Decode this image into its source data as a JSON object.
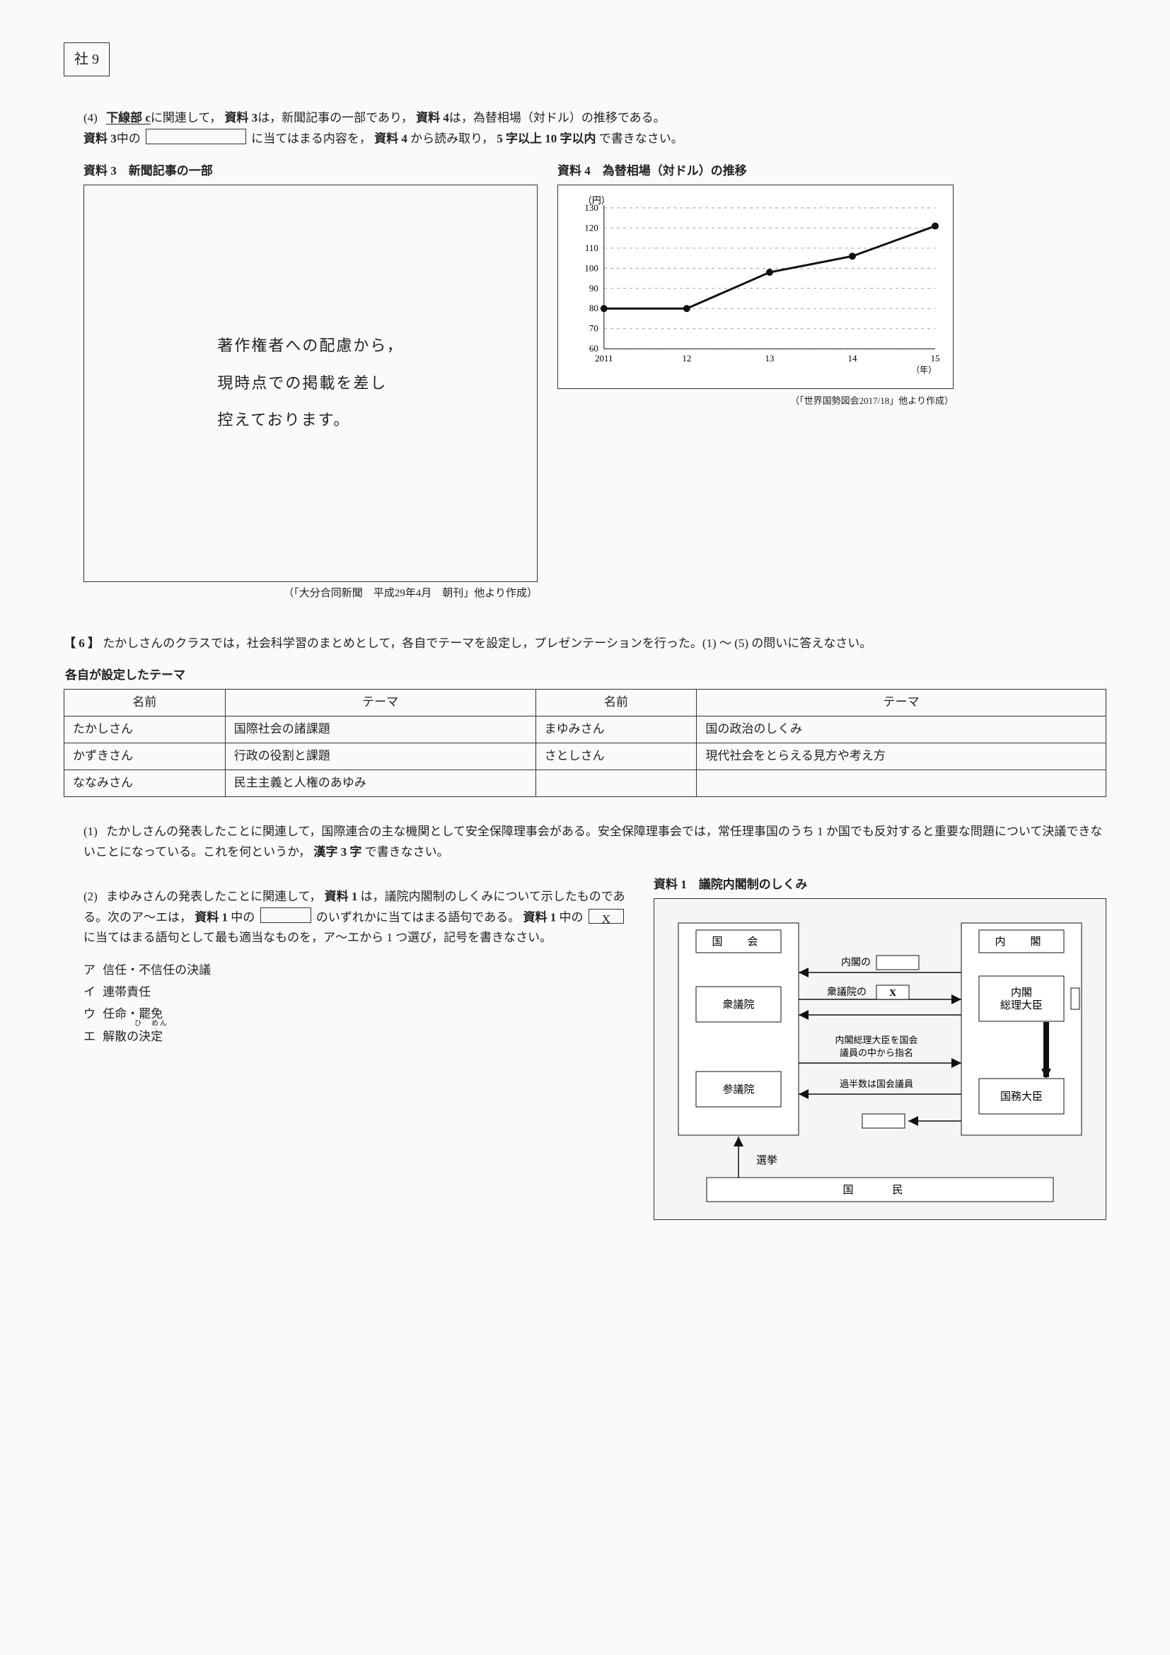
{
  "page_label": "社 9",
  "q4": {
    "num": "(4)",
    "line1_a": "下線部 c",
    "line1_b": "に関連して，",
    "line1_c": "資料 3",
    "line1_d": "は，新聞記事の一部であり，",
    "line1_e": "資料 4",
    "line1_f": "は，為替相場（対ドル）の推移である。",
    "line2_a": "資料 3",
    "line2_b": "中の",
    "line2_c": "に当てはまる内容を，",
    "line2_d": "資料 4",
    "line2_e": "から読み取り，",
    "line2_f": "5 字以上 10 字以内",
    "line2_g": "で書きなさい。"
  },
  "material3": {
    "title": "資料 3　新聞記事の一部",
    "copy_l1": "著作権者への配慮から，",
    "copy_l2": "現時点での掲載を差し",
    "copy_l3": "控えております。",
    "note": "（「大分合同新聞　平成29年4月　朝刊」他より作成）"
  },
  "material4": {
    "title": "資料 4　為替相場（対ドル）の推移",
    "y_unit": "（円）",
    "x_unit": "（年）",
    "caption": "（「世界国勢図会2017/18」他より作成）",
    "chart": {
      "type": "line",
      "x_labels": [
        "2011",
        "12",
        "13",
        "14",
        "15"
      ],
      "y_ticks": [
        60,
        70,
        80,
        90,
        100,
        110,
        120,
        130
      ],
      "ylim": [
        60,
        130
      ],
      "values": [
        80,
        80,
        98,
        106,
        121
      ],
      "line_color": "#111111",
      "marker_color": "#111111",
      "grid_color": "#888888",
      "line_width": 3,
      "marker_r": 5,
      "bg": "#ffffff"
    }
  },
  "q6": {
    "label": "【 6 】",
    "intro_a": "たかしさんのクラスでは，社会科学習のまとめとして，各自でテーマを設定し，プレゼンテーションを行った。(1) 〜 (5) の問いに答えなさい。",
    "theme_title": "各自が設定したテーマ",
    "table": {
      "headers": [
        "名前",
        "テーマ",
        "名前",
        "テーマ"
      ],
      "rows": [
        [
          "たかしさん",
          "国際社会の諸課題",
          "まゆみさん",
          "国の政治のしくみ"
        ],
        [
          "かずきさん",
          "行政の役割と課題",
          "さとしさん",
          "現代社会をとらえる見方や考え方"
        ],
        [
          "ななみさん",
          "民主主義と人権のあゆみ",
          "",
          ""
        ]
      ]
    },
    "sub1": {
      "num": "(1)",
      "text_a": "たかしさんの発表したことに関連して，国際連合の主な機関として安全保障理事会がある。安全保障理事会では，常任理事国のうち 1 か国でも反対すると重要な問題について決議できないことになっている。これを何というか，",
      "text_b": "漢字 3 字",
      "text_c": "で書きなさい。"
    },
    "sub2": {
      "num": "(2)",
      "text_a": "まゆみさんの発表したことに関連して，",
      "text_b": "資料 1",
      "text_c": "は，議院内閣制のしくみについて示したものである。次のア〜エは，",
      "text_d": "資料 1",
      "text_e": "中の",
      "text_f": "のいずれかに当てはまる語句である。",
      "text_g": "資料 1",
      "text_h": "中の",
      "text_i": "X",
      "text_j": "に当てはまる語句として最も適当なものを，ア〜エから 1 つ選び，記号を書きなさい。",
      "choices": {
        "a_label": "ア",
        "a": "信任・不信任の決議",
        "i_label": "イ",
        "i": "連帯責任",
        "u_label": "ウ",
        "u": "任命・罷免",
        "u_ruby": "ひ　めん",
        "e_label": "エ",
        "e": "解散の決定"
      }
    }
  },
  "material1": {
    "title": "資料 1　議院内閣制のしくみ",
    "diet": "国　会",
    "cabinet": "内　閣",
    "lower": "衆議院",
    "upper": "参議院",
    "pm": "内閣\n総理大臣",
    "minister": "国務大臣",
    "lab_cab_of": "内閣の",
    "lab_lower_of": "衆議院の",
    "lab_x": "X",
    "lab_appoint": "内閣総理大臣を国会\n議員の中から指名",
    "lab_majority": "過半数は国会議員",
    "election": "選挙",
    "citizen": "国　民"
  }
}
